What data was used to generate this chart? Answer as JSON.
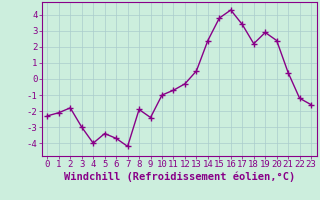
{
  "x": [
    0,
    1,
    2,
    3,
    4,
    5,
    6,
    7,
    8,
    9,
    10,
    11,
    12,
    13,
    14,
    15,
    16,
    17,
    18,
    19,
    20,
    21,
    22,
    23
  ],
  "y": [
    -2.3,
    -2.1,
    -1.8,
    -3.0,
    -4.0,
    -3.4,
    -3.7,
    -4.2,
    -1.9,
    -2.4,
    -1.0,
    -0.7,
    -0.3,
    0.5,
    2.4,
    3.8,
    4.3,
    3.4,
    2.2,
    2.9,
    2.4,
    0.4,
    -1.2,
    -1.6
  ],
  "line_color": "#880088",
  "marker": "+",
  "marker_size": 4,
  "marker_linewidth": 1.0,
  "line_width": 1.0,
  "background_color": "#cceedd",
  "grid_color": "#aacccc",
  "xlabel": "Windchill (Refroidissement éolien,°C)",
  "xlabel_color": "#880088",
  "tick_color": "#880088",
  "spine_color": "#880088",
  "ylim": [
    -4.8,
    4.8
  ],
  "yticks": [
    -4,
    -3,
    -2,
    -1,
    0,
    1,
    2,
    3,
    4
  ],
  "xticks": [
    0,
    1,
    2,
    3,
    4,
    5,
    6,
    7,
    8,
    9,
    10,
    11,
    12,
    13,
    14,
    15,
    16,
    17,
    18,
    19,
    20,
    21,
    22,
    23
  ],
  "tick_fontsize": 6.5,
  "xlabel_fontsize": 7.5
}
